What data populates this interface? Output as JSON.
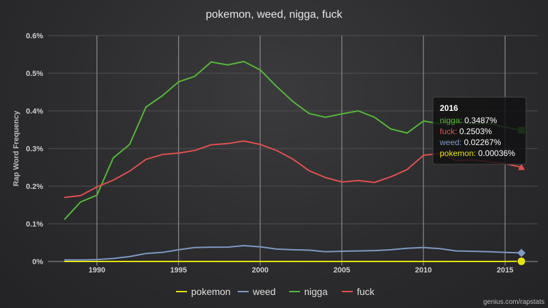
{
  "chart_data": {
    "type": "line",
    "title": "pokemon, weed, nigga, fuck",
    "xlabel": "",
    "ylabel": "Rap Word Frequency",
    "xlim": [
      1987,
      2017
    ],
    "ylim": [
      0,
      0.6
    ],
    "y_ticks": [
      0,
      0.1,
      0.2,
      0.3,
      0.4,
      0.5,
      0.6
    ],
    "y_tick_labels": [
      "0%",
      "0.1%",
      "0.2%",
      "0.3%",
      "0.4%",
      "0.5%",
      "0.6%"
    ],
    "x_ticks": [
      1990,
      1995,
      2000,
      2005,
      2010,
      2015
    ],
    "x_tick_labels": [
      "1990",
      "1995",
      "2000",
      "2005",
      "2010",
      "2015"
    ],
    "x": [
      1988,
      1989,
      1990,
      1991,
      1992,
      1993,
      1994,
      1995,
      1996,
      1997,
      1998,
      1999,
      2000,
      2001,
      2002,
      2003,
      2004,
      2005,
      2006,
      2007,
      2008,
      2009,
      2010,
      2011,
      2012,
      2013,
      2014,
      2015,
      2016
    ],
    "series": [
      {
        "name": "pokemon",
        "color": "#e5e40f",
        "marker": "circle",
        "values": [
          0,
          0,
          0,
          0,
          0,
          0,
          0,
          0,
          0,
          0,
          0,
          0,
          0,
          0,
          0,
          0,
          0,
          0,
          0,
          0,
          0,
          0,
          0,
          0,
          0,
          0,
          0,
          0,
          0.00036
        ]
      },
      {
        "name": "weed",
        "color": "#7f9ac4",
        "marker": "diamond",
        "values": [
          0.004,
          0.004,
          0.005,
          0.008,
          0.013,
          0.021,
          0.024,
          0.031,
          0.037,
          0.038,
          0.038,
          0.042,
          0.039,
          0.033,
          0.031,
          0.03,
          0.026,
          0.027,
          0.028,
          0.029,
          0.031,
          0.035,
          0.037,
          0.034,
          0.028,
          0.027,
          0.026,
          0.024,
          0.02267
        ]
      },
      {
        "name": "nigga",
        "color": "#55b838",
        "marker": "square",
        "values": [
          0.111,
          0.158,
          0.176,
          0.275,
          0.311,
          0.41,
          0.44,
          0.477,
          0.492,
          0.53,
          0.522,
          0.531,
          0.509,
          0.465,
          0.425,
          0.393,
          0.383,
          0.392,
          0.4,
          0.383,
          0.352,
          0.341,
          0.373,
          0.366,
          0.373,
          0.365,
          0.367,
          0.357,
          0.3487
        ]
      },
      {
        "name": "fuck",
        "color": "#e0504f",
        "marker": "triangle",
        "values": [
          0.17,
          0.175,
          0.198,
          0.216,
          0.24,
          0.271,
          0.284,
          0.288,
          0.295,
          0.31,
          0.313,
          0.32,
          0.311,
          0.295,
          0.272,
          0.241,
          0.223,
          0.211,
          0.215,
          0.21,
          0.225,
          0.244,
          0.282,
          0.287,
          0.268,
          0.27,
          0.265,
          0.26,
          0.2503
        ]
      }
    ],
    "grid": "vertical",
    "legend_position": "bottom",
    "tooltip": {
      "year": "2016",
      "rows": [
        {
          "name": "nigga",
          "value": "0.3487%",
          "color": "#55b838"
        },
        {
          "name": "fuck",
          "value": "0.2503%",
          "color": "#e0504f"
        },
        {
          "name": "weed",
          "value": "0.02267%",
          "color": "#7f9ac4"
        },
        {
          "name": "pokemon",
          "value": "0.00036%",
          "color": "#e5e40f"
        }
      ]
    }
  },
  "credit": "genius.com/rapstats"
}
